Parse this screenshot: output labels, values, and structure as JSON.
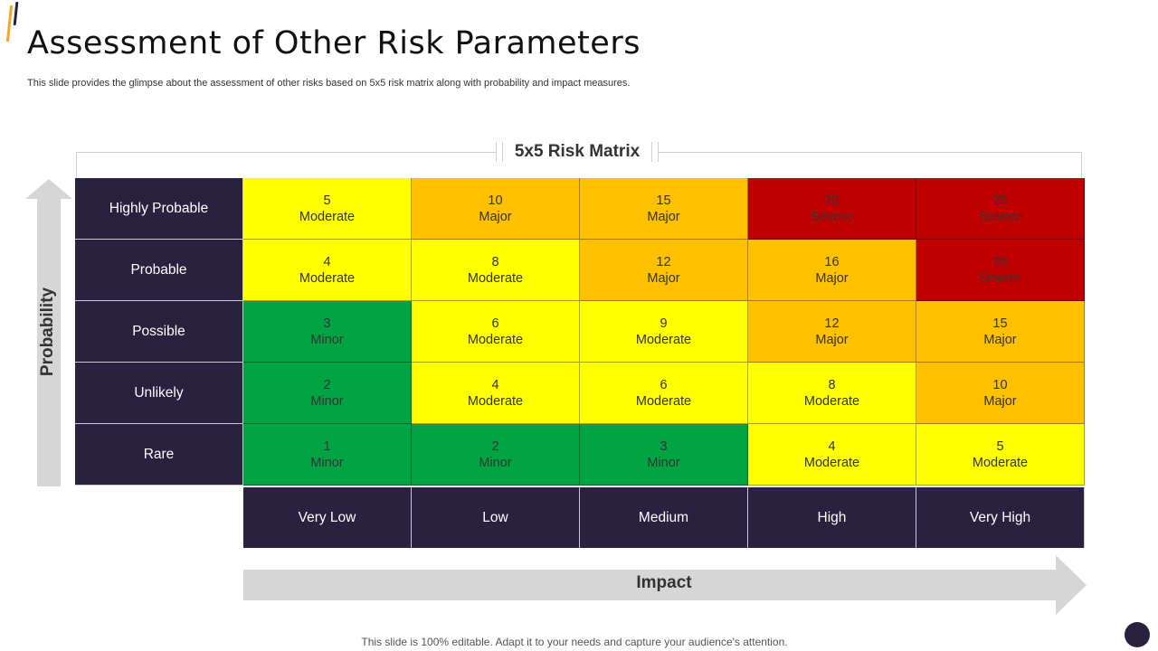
{
  "title": "Assessment of Other Risk Parameters",
  "subtitle": "This slide provides the glimpse about the assessment of other risks based on 5x5 risk matrix along with probability and impact measures.",
  "matrix": {
    "title": "5x5 Risk Matrix",
    "probability_label": "Probability",
    "impact_label": "Impact",
    "rows": [
      {
        "label": "Highly Probable",
        "cells": [
          {
            "score": "5",
            "level": "Moderate"
          },
          {
            "score": "10",
            "level": "Major"
          },
          {
            "score": "15",
            "level": "Major"
          },
          {
            "score": "20",
            "level": "Severe"
          },
          {
            "score": "25",
            "level": "Severe"
          }
        ]
      },
      {
        "label": "Probable",
        "cells": [
          {
            "score": "4",
            "level": "Moderate"
          },
          {
            "score": "8",
            "level": "Moderate"
          },
          {
            "score": "12",
            "level": "Major"
          },
          {
            "score": "16",
            "level": "Major"
          },
          {
            "score": "20",
            "level": "Severe"
          }
        ]
      },
      {
        "label": "Possible",
        "cells": [
          {
            "score": "3",
            "level": "Minor"
          },
          {
            "score": "6",
            "level": "Moderate"
          },
          {
            "score": "9",
            "level": "Moderate"
          },
          {
            "score": "12",
            "level": "Major"
          },
          {
            "score": "15",
            "level": "Major"
          }
        ]
      },
      {
        "label": "Unlikely",
        "cells": [
          {
            "score": "2",
            "level": "Minor"
          },
          {
            "score": "4",
            "level": "Moderate"
          },
          {
            "score": "6",
            "level": "Moderate"
          },
          {
            "score": "8",
            "level": "Moderate"
          },
          {
            "score": "10",
            "level": "Major"
          }
        ]
      },
      {
        "label": "Rare",
        "cells": [
          {
            "score": "1",
            "level": "Minor"
          },
          {
            "score": "2",
            "level": "Minor"
          },
          {
            "score": "3",
            "level": "Minor"
          },
          {
            "score": "4",
            "level": "Moderate"
          },
          {
            "score": "5",
            "level": "Moderate"
          }
        ]
      }
    ],
    "columns": [
      "Very Low",
      "Low",
      "Medium",
      "High",
      "Very High"
    ]
  },
  "colors": {
    "Minor": "#00a443",
    "Moderate": "#ffff00",
    "Major": "#ffc000",
    "Severe": "#c00000",
    "header": "#2a2140",
    "arrow": "#d6d6d6"
  },
  "footer": "This slide is 100% editable. Adapt it to your needs and capture your audience's attention."
}
